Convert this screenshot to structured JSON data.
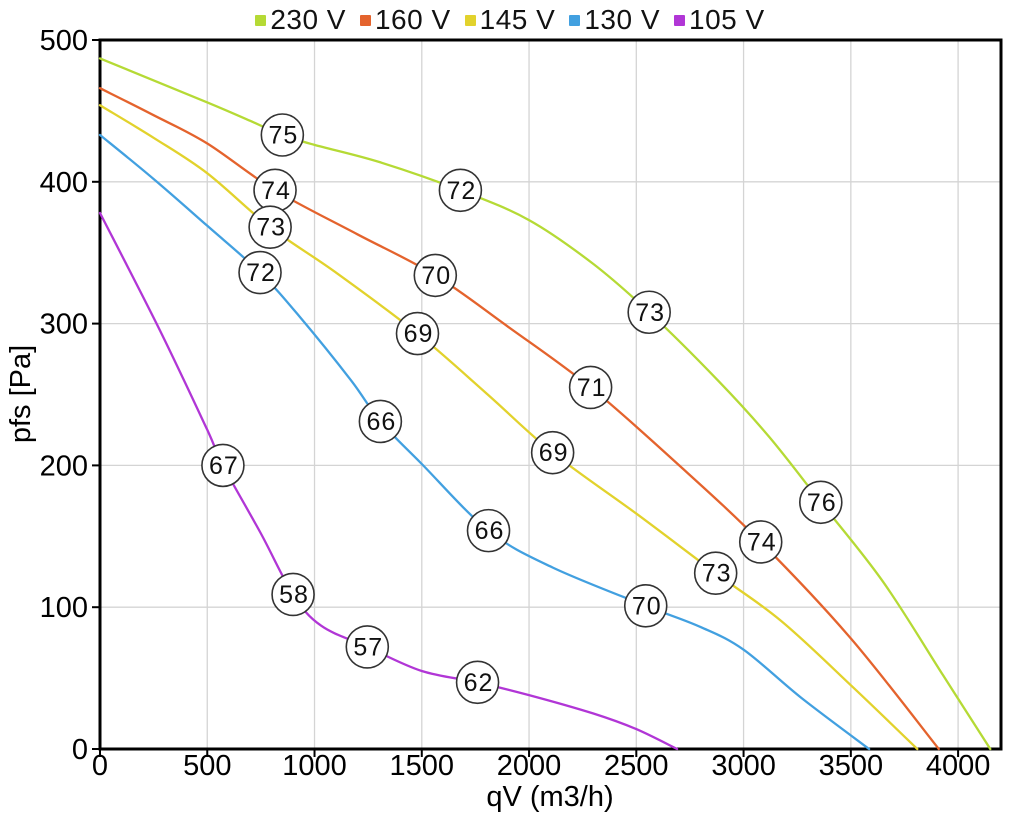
{
  "chart_data": {
    "type": "line",
    "title": "",
    "xlabel": "qV (m3/h)",
    "ylabel": "pfs [Pa]",
    "xlim": [
      0,
      4200
    ],
    "ylim": [
      0,
      500
    ],
    "x_ticks": [
      0,
      500,
      1000,
      1500,
      2000,
      2500,
      3000,
      3500,
      4000
    ],
    "y_ticks": [
      0,
      100,
      200,
      300,
      400,
      500
    ],
    "grid": true,
    "grid_color": "#d4d4d4",
    "axis_color": "#000000",
    "background_color": "#ffffff",
    "legend_position": "top",
    "bubble_fill": "#ffffff",
    "bubble_stroke": "#333333",
    "series": [
      {
        "name": "230 V",
        "color": "#b5da35",
        "points": [
          [
            0,
            487
          ],
          [
            500,
            456
          ],
          [
            700,
            443
          ],
          [
            850,
            433
          ],
          [
            1000,
            426
          ],
          [
            1300,
            414
          ],
          [
            1680,
            394
          ],
          [
            2000,
            373
          ],
          [
            2300,
            342
          ],
          [
            2560,
            308
          ],
          [
            2880,
            260
          ],
          [
            3120,
            220
          ],
          [
            3360,
            174
          ],
          [
            3650,
            118
          ],
          [
            3930,
            52
          ],
          [
            4150,
            0
          ]
        ],
        "labels": [
          {
            "text": "75",
            "x": 850,
            "y": 433
          },
          {
            "text": "72",
            "x": 1680,
            "y": 394
          },
          {
            "text": "73",
            "x": 2560,
            "y": 308
          },
          {
            "text": "76",
            "x": 3360,
            "y": 174
          }
        ]
      },
      {
        "name": "160 V",
        "color": "#e4632d",
        "points": [
          [
            0,
            466
          ],
          [
            250,
            447
          ],
          [
            500,
            427
          ],
          [
            816,
            394
          ],
          [
            1200,
            363
          ],
          [
            1563,
            334
          ],
          [
            1900,
            298
          ],
          [
            2287,
            255
          ],
          [
            2700,
            200
          ],
          [
            3080,
            146
          ],
          [
            3500,
            78
          ],
          [
            3910,
            0
          ]
        ],
        "labels": [
          {
            "text": "74",
            "x": 816,
            "y": 394
          },
          {
            "text": "70",
            "x": 1563,
            "y": 334
          },
          {
            "text": "71",
            "x": 2287,
            "y": 255
          },
          {
            "text": "74",
            "x": 3080,
            "y": 146
          }
        ]
      },
      {
        "name": "145 V",
        "color": "#e2d22c",
        "points": [
          [
            0,
            454
          ],
          [
            250,
            431
          ],
          [
            500,
            406
          ],
          [
            793,
            368
          ],
          [
            1100,
            336
          ],
          [
            1480,
            293
          ],
          [
            1800,
            251
          ],
          [
            2110,
            209
          ],
          [
            2500,
            166
          ],
          [
            2870,
            124
          ],
          [
            3170,
            91
          ],
          [
            3500,
            45
          ],
          [
            3810,
            0
          ]
        ],
        "labels": [
          {
            "text": "73",
            "x": 793,
            "y": 368
          },
          {
            "text": "69",
            "x": 1480,
            "y": 293
          },
          {
            "text": "69",
            "x": 2110,
            "y": 209
          },
          {
            "text": "73",
            "x": 2870,
            "y": 124
          }
        ]
      },
      {
        "name": "130 V",
        "color": "#42a0e0",
        "points": [
          [
            0,
            433
          ],
          [
            250,
            402
          ],
          [
            500,
            369
          ],
          [
            746,
            336
          ],
          [
            930,
            305
          ],
          [
            1170,
            260
          ],
          [
            1307,
            231
          ],
          [
            1500,
            201
          ],
          [
            1811,
            154
          ],
          [
            2110,
            128
          ],
          [
            2544,
            101
          ],
          [
            2800,
            86
          ],
          [
            3000,
            70
          ],
          [
            3270,
            36
          ],
          [
            3585,
            0
          ]
        ],
        "labels": [
          {
            "text": "72",
            "x": 746,
            "y": 336
          },
          {
            "text": "66",
            "x": 1307,
            "y": 231
          },
          {
            "text": "66",
            "x": 1811,
            "y": 154
          },
          {
            "text": "70",
            "x": 2544,
            "y": 101
          }
        ]
      },
      {
        "name": "105 V",
        "color": "#b136d6",
        "points": [
          [
            0,
            378
          ],
          [
            280,
            295
          ],
          [
            500,
            225
          ],
          [
            573,
            200
          ],
          [
            750,
            152
          ],
          [
            900,
            109
          ],
          [
            1030,
            87
          ],
          [
            1246,
            72
          ],
          [
            1500,
            55
          ],
          [
            1760,
            47
          ],
          [
            2000,
            38
          ],
          [
            2300,
            25
          ],
          [
            2500,
            14
          ],
          [
            2690,
            0
          ]
        ],
        "labels": [
          {
            "text": "67",
            "x": 573,
            "y": 200
          },
          {
            "text": "58",
            "x": 900,
            "y": 109
          },
          {
            "text": "57",
            "x": 1246,
            "y": 72
          },
          {
            "text": "62",
            "x": 1760,
            "y": 47
          }
        ]
      }
    ]
  }
}
